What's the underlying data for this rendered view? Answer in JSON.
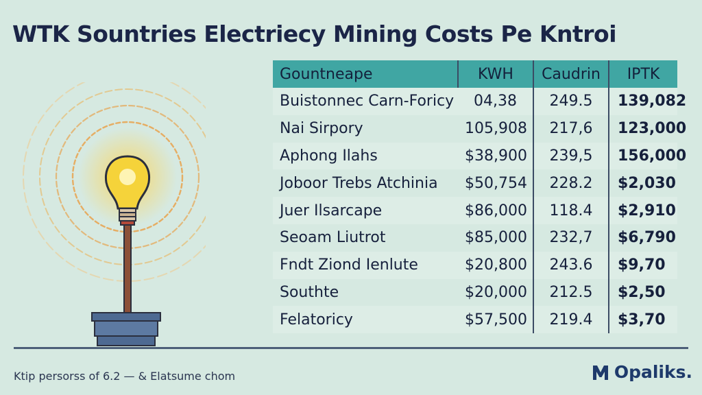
{
  "title": "WTK Sountries Electriecy Mining Costs Pe Kntroi",
  "table": {
    "headers": [
      "Gountneape",
      "KWH",
      "Caudrin",
      "IPTK"
    ],
    "rows": [
      [
        "Buistonnec Carn-Foricy",
        "04,38",
        "249.5",
        "139,082"
      ],
      [
        "Nai Sirpory",
        "105,908",
        "217,6",
        "123,000"
      ],
      [
        "Aphong Ilahs",
        "$38,900",
        "239,5",
        "156,000"
      ],
      [
        "Joboor Trebs Atchinia",
        "$50,754",
        "228.2",
        "$2,030"
      ],
      [
        "Juer Ilsarcape",
        "$86,000",
        "118.4",
        "$2,910"
      ],
      [
        "Seoam Liutrot",
        "$85,000",
        "232,7",
        "$6,790"
      ],
      [
        "Fndt Ziond Ienlute",
        "$20,800",
        "243.6",
        "$9,70"
      ],
      [
        "Southte",
        "$20,000",
        "212.5",
        "$2,50"
      ],
      [
        "Felatoricy",
        "$57,500",
        "219.4",
        "$3,70"
      ]
    ]
  },
  "footnote": "Ktip persorss of 6.2 — & Elatsume chom",
  "logo": {
    "text": "Opaliks.",
    "icon": "m-logo-icon"
  },
  "illustration": {
    "icon": "lightbulb-icon"
  },
  "colors": {
    "background": "#d6e9e1",
    "header": "#40a6a3",
    "title": "#1b2547",
    "accent": "#f2c230"
  }
}
